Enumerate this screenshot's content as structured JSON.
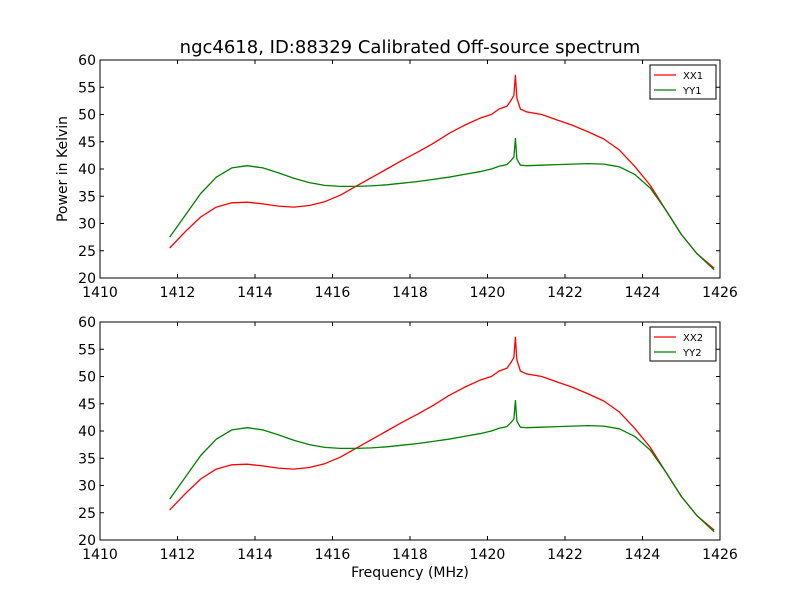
{
  "title": "ngc4618, ID:88329 Calibrated Off-source spectrum",
  "colors": {
    "xx": "#ff0000",
    "yy": "#008000"
  },
  "chart_data": [
    {
      "type": "line",
      "title": "ngc4618, ID:88329 Calibrated Off-source spectrum",
      "xlabel": "",
      "ylabel": "Power in Kelvin",
      "xlim": [
        1410,
        1426
      ],
      "ylim": [
        20,
        60
      ],
      "xticks": [
        "1410",
        "1412",
        "1414",
        "1416",
        "1418",
        "1420",
        "1422",
        "1424",
        "1426"
      ],
      "yticks": [
        "20",
        "25",
        "30",
        "35",
        "40",
        "45",
        "50",
        "55",
        "60"
      ],
      "grid": false,
      "legend_position": "top-right",
      "series": [
        {
          "name": "XX1",
          "color": "#ff0000",
          "x": [
            1411.8,
            1412.2,
            1412.6,
            1413.0,
            1413.4,
            1413.8,
            1414.2,
            1414.6,
            1415.0,
            1415.4,
            1415.8,
            1416.2,
            1416.6,
            1417.0,
            1417.4,
            1417.8,
            1418.2,
            1418.6,
            1419.0,
            1419.4,
            1419.8,
            1420.1,
            1420.3,
            1420.5,
            1420.6,
            1420.68,
            1420.72,
            1420.76,
            1420.85,
            1421.0,
            1421.4,
            1421.8,
            1422.2,
            1422.6,
            1423.0,
            1423.4,
            1423.8,
            1424.2,
            1424.6,
            1425.0,
            1425.4,
            1425.85
          ],
          "y": [
            25.5,
            28.5,
            31.2,
            33.0,
            33.8,
            33.9,
            33.6,
            33.2,
            33.0,
            33.3,
            34.0,
            35.2,
            36.8,
            38.4,
            40.0,
            41.6,
            43.1,
            44.7,
            46.5,
            48.0,
            49.3,
            50.0,
            51.0,
            51.5,
            52.5,
            53.5,
            57.2,
            53.0,
            51.0,
            50.5,
            50.0,
            49.0,
            48.0,
            46.8,
            45.5,
            43.5,
            40.5,
            37.0,
            32.5,
            28.0,
            24.5,
            21.8
          ]
        },
        {
          "name": "YY1",
          "color": "#008000",
          "x": [
            1411.8,
            1412.2,
            1412.6,
            1413.0,
            1413.4,
            1413.8,
            1414.2,
            1414.6,
            1415.0,
            1415.4,
            1415.8,
            1416.2,
            1416.6,
            1417.0,
            1417.4,
            1417.8,
            1418.2,
            1418.6,
            1419.0,
            1419.4,
            1419.8,
            1420.1,
            1420.3,
            1420.5,
            1420.6,
            1420.68,
            1420.72,
            1420.76,
            1420.85,
            1421.0,
            1421.4,
            1421.8,
            1422.2,
            1422.6,
            1423.0,
            1423.4,
            1423.8,
            1424.2,
            1424.6,
            1425.0,
            1425.4,
            1425.85
          ],
          "y": [
            27.5,
            31.5,
            35.5,
            38.5,
            40.2,
            40.6,
            40.2,
            39.3,
            38.3,
            37.5,
            37.0,
            36.8,
            36.8,
            36.9,
            37.1,
            37.4,
            37.7,
            38.1,
            38.5,
            39.0,
            39.5,
            40.0,
            40.5,
            40.8,
            41.5,
            42.2,
            45.6,
            41.8,
            40.7,
            40.6,
            40.7,
            40.8,
            40.9,
            41.0,
            40.9,
            40.4,
            39.0,
            36.5,
            32.5,
            28.0,
            24.5,
            21.5
          ]
        }
      ]
    },
    {
      "type": "line",
      "title": "",
      "xlabel": "Frequency (MHz)",
      "ylabel": "",
      "xlim": [
        1410,
        1426
      ],
      "ylim": [
        20,
        60
      ],
      "xticks": [
        "1410",
        "1412",
        "1414",
        "1416",
        "1418",
        "1420",
        "1422",
        "1424",
        "1426"
      ],
      "yticks": [
        "20",
        "25",
        "30",
        "35",
        "40",
        "45",
        "50",
        "55",
        "60"
      ],
      "grid": false,
      "legend_position": "top-right",
      "series": [
        {
          "name": "XX2",
          "color": "#ff0000",
          "x": [
            1411.8,
            1412.2,
            1412.6,
            1413.0,
            1413.4,
            1413.8,
            1414.2,
            1414.6,
            1415.0,
            1415.4,
            1415.8,
            1416.2,
            1416.6,
            1417.0,
            1417.4,
            1417.8,
            1418.2,
            1418.6,
            1419.0,
            1419.4,
            1419.8,
            1420.1,
            1420.3,
            1420.5,
            1420.6,
            1420.68,
            1420.72,
            1420.76,
            1420.85,
            1421.0,
            1421.4,
            1421.8,
            1422.2,
            1422.6,
            1423.0,
            1423.4,
            1423.8,
            1424.2,
            1424.6,
            1425.0,
            1425.4,
            1425.85
          ],
          "y": [
            25.5,
            28.5,
            31.2,
            33.0,
            33.8,
            33.9,
            33.6,
            33.2,
            33.0,
            33.3,
            34.0,
            35.2,
            36.8,
            38.4,
            40.0,
            41.6,
            43.1,
            44.7,
            46.5,
            48.0,
            49.3,
            50.0,
            51.0,
            51.5,
            52.5,
            53.5,
            57.2,
            53.0,
            51.0,
            50.5,
            50.0,
            49.0,
            48.0,
            46.8,
            45.5,
            43.5,
            40.5,
            37.0,
            32.5,
            28.0,
            24.5,
            21.8
          ]
        },
        {
          "name": "YY2",
          "color": "#008000",
          "x": [
            1411.8,
            1412.2,
            1412.6,
            1413.0,
            1413.4,
            1413.8,
            1414.2,
            1414.6,
            1415.0,
            1415.4,
            1415.8,
            1416.2,
            1416.6,
            1417.0,
            1417.4,
            1417.8,
            1418.2,
            1418.6,
            1419.0,
            1419.4,
            1419.8,
            1420.1,
            1420.3,
            1420.5,
            1420.6,
            1420.68,
            1420.72,
            1420.76,
            1420.85,
            1421.0,
            1421.4,
            1421.8,
            1422.2,
            1422.6,
            1423.0,
            1423.4,
            1423.8,
            1424.2,
            1424.6,
            1425.0,
            1425.4,
            1425.85
          ],
          "y": [
            27.5,
            31.5,
            35.5,
            38.5,
            40.2,
            40.6,
            40.2,
            39.3,
            38.3,
            37.5,
            37.0,
            36.8,
            36.8,
            36.9,
            37.1,
            37.4,
            37.7,
            38.1,
            38.5,
            39.0,
            39.5,
            40.0,
            40.5,
            40.8,
            41.5,
            42.2,
            45.6,
            41.8,
            40.7,
            40.6,
            40.7,
            40.8,
            40.9,
            41.0,
            40.9,
            40.4,
            39.0,
            36.5,
            32.5,
            28.0,
            24.5,
            21.5
          ]
        }
      ]
    }
  ]
}
